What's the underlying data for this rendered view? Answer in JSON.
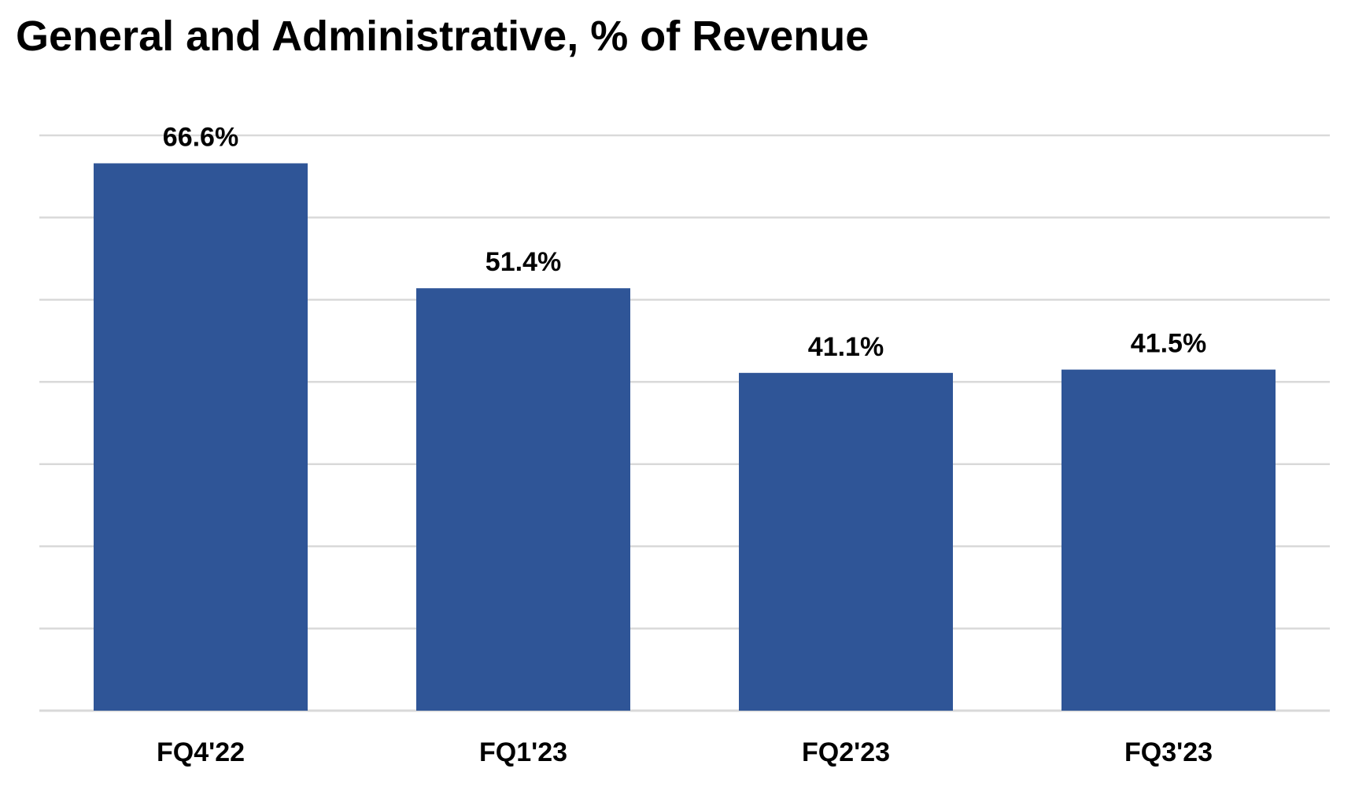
{
  "chart_data": {
    "type": "bar",
    "title": "General and Administrative, % of Revenue",
    "categories": [
      "FQ4'22",
      "FQ1'23",
      "FQ2'23",
      "FQ3'23"
    ],
    "values": [
      66.6,
      51.4,
      41.1,
      41.5
    ],
    "data_labels": [
      "66.6%",
      "51.4%",
      "41.1%",
      "41.5%"
    ],
    "ylim": [
      0,
      70
    ],
    "gridline_step": 10,
    "grid": true,
    "legend": "none",
    "bar_color": "#2F5597",
    "gridline_color": "#d9d9d9"
  }
}
